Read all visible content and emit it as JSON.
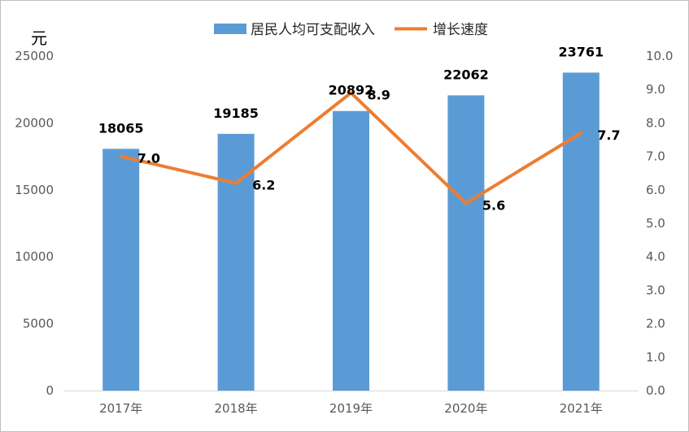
{
  "chart_data": {
    "type": "bar",
    "title": "",
    "categories": [
      "2017年",
      "2018年",
      "2019年",
      "2020年",
      "2021年"
    ],
    "y_unit": "元",
    "ylim": [
      0,
      25000
    ],
    "y_ticks": [
      "0",
      "5000",
      "10000",
      "15000",
      "20000",
      "25000"
    ],
    "y2lim": [
      0,
      10
    ],
    "y2_ticks": [
      "0.0",
      "1.0",
      "2.0",
      "3.0",
      "4.0",
      "5.0",
      "6.0",
      "7.0",
      "8.0",
      "9.0",
      "10.0"
    ],
    "grid": false,
    "legend_position": "top",
    "series": [
      {
        "name": "居民人均可支配收入",
        "type": "bar",
        "axis": "left",
        "color": "#5b9bd5",
        "values": [
          18065,
          19185,
          20892,
          22062,
          23761
        ],
        "labels": [
          "18065",
          "19185",
          "20892",
          "22062",
          "23761"
        ]
      },
      {
        "name": "增长速度",
        "type": "line",
        "axis": "right",
        "color": "#ed7d31",
        "values": [
          7.0,
          6.2,
          8.9,
          5.6,
          7.7
        ],
        "labels": [
          "7.0",
          "6.2",
          "8.9",
          "5.6",
          "7.7"
        ]
      }
    ]
  }
}
